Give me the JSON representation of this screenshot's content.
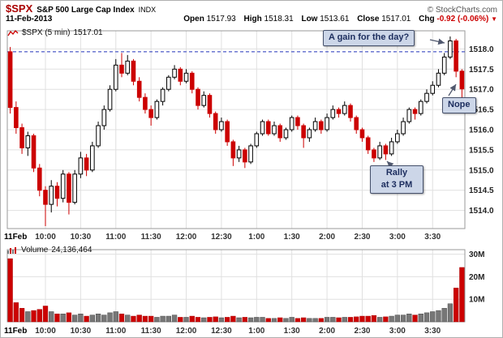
{
  "header": {
    "symbol": "$SPX",
    "name": "S&P 500 Large Cap Index",
    "exchange": "INDX",
    "date": "11-Feb-2013",
    "credit": "© StockCharts.com",
    "quote": {
      "open_label": "Open",
      "open": "1517.93",
      "high_label": "High",
      "high": "1518.31",
      "low_label": "Low",
      "low": "1513.61",
      "close_label": "Close",
      "close": "1517.01",
      "chg_label": "Chg",
      "chg": "-0.92 (-0.06%)",
      "chg_arrow": "▼"
    }
  },
  "price_pane": {
    "legend_label": "$SPX (5 min)",
    "legend_value": "1517.01"
  },
  "volume_pane": {
    "legend_label": "Volume",
    "legend_value": "24,136,464"
  },
  "annotations": [
    {
      "text": "A gain for the day?"
    },
    {
      "text": "Nope"
    },
    {
      "line1": "Rally",
      "line2": "at 3 PM"
    }
  ],
  "colors": {
    "up": "#000000",
    "up_fill": "#ffffff",
    "down": "#cc0000",
    "grid": "#e0e0e0",
    "border": "#999999",
    "open_line": "#2233bb",
    "vol_up": "#777777",
    "axis_text": "#222222"
  },
  "chart_data": {
    "type": "candlestick+volume",
    "title": "$SPX (5 min) 11-Feb-2013 intraday",
    "open_reference_line": 1517.93,
    "y_axis": {
      "min": 1513.55,
      "max": 1518.45,
      "ticks": [
        1514.0,
        1514.5,
        1515.0,
        1515.5,
        1516.0,
        1516.5,
        1517.0,
        1517.5,
        1518.0
      ]
    },
    "volume_axis": {
      "max_millions": 32,
      "ticks_millions": [
        10,
        20,
        30
      ],
      "tick_labels": [
        "10M",
        "20M",
        "30M"
      ]
    },
    "x_start_label": "11Feb",
    "x_ticks": [
      "10:00",
      "10:30",
      "11:00",
      "11:30",
      "12:00",
      "12:30",
      "1:00",
      "1:30",
      "2:00",
      "2:30",
      "3:00",
      "3:30"
    ],
    "x_tick_indices": [
      6,
      12,
      18,
      24,
      30,
      36,
      42,
      48,
      54,
      60,
      66,
      72
    ],
    "columns": [
      "time",
      "open",
      "high",
      "low",
      "close",
      "volume_millions"
    ],
    "bars": [
      [
        "9:30",
        1517.93,
        1518.05,
        1516.4,
        1516.55,
        28.0
      ],
      [
        "9:35",
        1516.55,
        1516.7,
        1515.9,
        1516.05,
        8.5
      ],
      [
        "9:40",
        1516.05,
        1516.15,
        1515.4,
        1515.55,
        6.0
      ],
      [
        "9:45",
        1515.55,
        1515.95,
        1515.35,
        1515.85,
        4.5
      ],
      [
        "9:50",
        1515.85,
        1515.9,
        1514.95,
        1515.05,
        5.0
      ],
      [
        "9:55",
        1515.05,
        1515.15,
        1514.35,
        1514.5,
        5.5
      ],
      [
        "10:00",
        1514.5,
        1514.6,
        1513.61,
        1514.15,
        7.0
      ],
      [
        "10:05",
        1514.15,
        1514.75,
        1513.95,
        1514.6,
        4.5
      ],
      [
        "10:10",
        1514.6,
        1514.7,
        1514.1,
        1514.3,
        3.5
      ],
      [
        "10:15",
        1514.3,
        1515.0,
        1514.2,
        1514.9,
        3.5
      ],
      [
        "10:20",
        1514.9,
        1514.95,
        1513.9,
        1514.2,
        4.0
      ],
      [
        "10:25",
        1514.2,
        1515.0,
        1514.15,
        1514.9,
        3.0
      ],
      [
        "10:30",
        1514.9,
        1515.45,
        1514.8,
        1515.3,
        3.5
      ],
      [
        "10:35",
        1515.3,
        1515.4,
        1514.85,
        1515.0,
        2.5
      ],
      [
        "10:40",
        1515.0,
        1515.7,
        1514.95,
        1515.6,
        3.0
      ],
      [
        "10:45",
        1515.6,
        1516.2,
        1515.55,
        1516.1,
        3.5
      ],
      [
        "10:50",
        1516.1,
        1516.6,
        1516.0,
        1516.5,
        3.0
      ],
      [
        "10:55",
        1516.5,
        1517.1,
        1516.45,
        1517.0,
        4.0
      ],
      [
        "11:00",
        1517.0,
        1517.75,
        1516.95,
        1517.6,
        4.5
      ],
      [
        "11:05",
        1517.6,
        1517.9,
        1517.3,
        1517.4,
        3.5
      ],
      [
        "11:10",
        1517.4,
        1517.85,
        1517.35,
        1517.7,
        3.0
      ],
      [
        "11:15",
        1517.7,
        1517.75,
        1517.1,
        1517.2,
        2.5
      ],
      [
        "11:20",
        1517.2,
        1517.3,
        1516.7,
        1516.8,
        3.0
      ],
      [
        "11:25",
        1516.8,
        1516.9,
        1516.4,
        1516.5,
        2.5
      ],
      [
        "11:30",
        1516.5,
        1516.6,
        1516.1,
        1516.3,
        2.5
      ],
      [
        "11:35",
        1516.3,
        1516.75,
        1516.25,
        1516.7,
        2.0
      ],
      [
        "11:40",
        1516.7,
        1517.05,
        1516.6,
        1517.0,
        2.5
      ],
      [
        "11:45",
        1517.0,
        1517.35,
        1516.95,
        1517.3,
        2.5
      ],
      [
        "11:50",
        1517.3,
        1517.6,
        1517.25,
        1517.5,
        3.0
      ],
      [
        "11:55",
        1517.5,
        1517.55,
        1517.1,
        1517.2,
        2.0
      ],
      [
        "12:00",
        1517.2,
        1517.5,
        1517.15,
        1517.4,
        2.0
      ],
      [
        "12:05",
        1517.4,
        1517.45,
        1516.9,
        1517.0,
        2.5
      ],
      [
        "12:10",
        1517.0,
        1517.05,
        1516.5,
        1516.6,
        2.0
      ],
      [
        "12:15",
        1516.6,
        1516.95,
        1516.55,
        1516.85,
        1.8
      ],
      [
        "12:20",
        1516.85,
        1516.9,
        1516.3,
        1516.4,
        2.0
      ],
      [
        "12:25",
        1516.4,
        1516.45,
        1515.9,
        1516.0,
        2.2
      ],
      [
        "12:30",
        1516.0,
        1516.3,
        1515.95,
        1516.2,
        1.8
      ],
      [
        "12:35",
        1516.2,
        1516.25,
        1515.6,
        1515.7,
        2.0
      ],
      [
        "12:40",
        1515.7,
        1515.75,
        1515.1,
        1515.3,
        2.5
      ],
      [
        "12:45",
        1515.3,
        1515.6,
        1515.2,
        1515.5,
        1.8
      ],
      [
        "12:50",
        1515.5,
        1515.55,
        1515.05,
        1515.2,
        2.0
      ],
      [
        "12:55",
        1515.2,
        1515.65,
        1515.15,
        1515.6,
        1.8
      ],
      [
        "1:00",
        1515.6,
        1515.95,
        1515.55,
        1515.9,
        2.0
      ],
      [
        "1:05",
        1515.9,
        1516.25,
        1515.85,
        1516.2,
        2.0
      ],
      [
        "1:10",
        1516.2,
        1516.25,
        1515.85,
        1515.9,
        1.5
      ],
      [
        "1:15",
        1515.9,
        1516.2,
        1515.85,
        1516.1,
        1.5
      ],
      [
        "1:20",
        1516.1,
        1516.15,
        1515.7,
        1515.8,
        1.8
      ],
      [
        "1:25",
        1515.8,
        1516.05,
        1515.75,
        1516.0,
        1.5
      ],
      [
        "1:30",
        1516.0,
        1516.35,
        1515.95,
        1516.3,
        2.0
      ],
      [
        "1:35",
        1516.3,
        1516.35,
        1516.0,
        1516.1,
        1.5
      ],
      [
        "1:40",
        1516.1,
        1516.15,
        1515.55,
        1515.8,
        1.8
      ],
      [
        "1:45",
        1515.8,
        1516.05,
        1515.7,
        1516.0,
        1.5
      ],
      [
        "1:50",
        1516.0,
        1516.3,
        1515.95,
        1516.2,
        1.5
      ],
      [
        "1:55",
        1516.2,
        1516.25,
        1515.9,
        1516.0,
        1.5
      ],
      [
        "2:00",
        1516.0,
        1516.4,
        1515.95,
        1516.3,
        2.0
      ],
      [
        "2:05",
        1516.3,
        1516.6,
        1516.25,
        1516.5,
        2.0
      ],
      [
        "2:10",
        1516.5,
        1516.55,
        1516.3,
        1516.4,
        1.8
      ],
      [
        "2:15",
        1516.4,
        1516.7,
        1516.35,
        1516.6,
        2.0
      ],
      [
        "2:20",
        1516.6,
        1516.65,
        1516.2,
        1516.3,
        2.0
      ],
      [
        "2:25",
        1516.3,
        1516.35,
        1515.9,
        1516.0,
        2.2
      ],
      [
        "2:30",
        1516.0,
        1516.05,
        1515.7,
        1515.8,
        2.5
      ],
      [
        "2:35",
        1515.8,
        1515.85,
        1515.4,
        1515.5,
        2.5
      ],
      [
        "2:40",
        1515.5,
        1515.55,
        1515.2,
        1515.3,
        2.8
      ],
      [
        "2:45",
        1515.3,
        1515.7,
        1515.25,
        1515.6,
        2.0
      ],
      [
        "2:50",
        1515.6,
        1515.65,
        1515.25,
        1515.4,
        2.2
      ],
      [
        "2:55",
        1515.4,
        1515.8,
        1515.35,
        1515.7,
        2.5
      ],
      [
        "3:00",
        1515.7,
        1516.0,
        1515.65,
        1515.9,
        3.0
      ],
      [
        "3:05",
        1515.9,
        1516.3,
        1515.85,
        1516.2,
        3.0
      ],
      [
        "3:10",
        1516.2,
        1516.55,
        1516.15,
        1516.5,
        3.5
      ],
      [
        "3:15",
        1516.5,
        1516.55,
        1516.25,
        1516.4,
        3.0
      ],
      [
        "3:20",
        1516.4,
        1516.75,
        1516.35,
        1516.7,
        3.5
      ],
      [
        "3:25",
        1516.7,
        1517.0,
        1516.65,
        1516.9,
        4.0
      ],
      [
        "3:30",
        1516.9,
        1517.2,
        1516.85,
        1517.1,
        4.5
      ],
      [
        "3:35",
        1517.1,
        1517.5,
        1517.05,
        1517.4,
        5.0
      ],
      [
        "3:40",
        1517.4,
        1517.9,
        1517.35,
        1517.8,
        6.0
      ],
      [
        "3:45",
        1517.8,
        1518.31,
        1517.75,
        1518.2,
        8.0
      ],
      [
        "3:50",
        1518.2,
        1518.25,
        1517.3,
        1517.45,
        15.0
      ],
      [
        "3:55",
        1517.45,
        1517.5,
        1516.8,
        1517.01,
        24.1
      ]
    ]
  }
}
